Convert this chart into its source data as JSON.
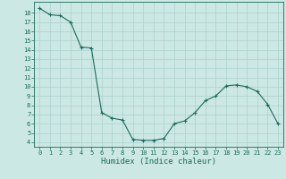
{
  "x": [
    0,
    1,
    2,
    3,
    4,
    5,
    6,
    7,
    8,
    9,
    10,
    11,
    12,
    13,
    14,
    15,
    16,
    17,
    18,
    19,
    20,
    21,
    22,
    23
  ],
  "y": [
    18.5,
    17.8,
    17.7,
    17.0,
    14.3,
    14.2,
    7.2,
    6.6,
    6.4,
    4.3,
    4.2,
    4.2,
    4.4,
    6.0,
    6.3,
    7.2,
    8.5,
    9.0,
    10.1,
    10.2,
    10.0,
    9.5,
    8.1,
    6.0
  ],
  "line_color": "#1a6b5a",
  "marker_color": "#1a6b5a",
  "bg_color": "#cce8e4",
  "grid_color": "#aad0cc",
  "ylabel_values": [
    4,
    5,
    6,
    7,
    8,
    9,
    10,
    11,
    12,
    13,
    14,
    15,
    16,
    17,
    18
  ],
  "xlabel": "Humidex (Indice chaleur)",
  "xlim": [
    -0.5,
    23.5
  ],
  "ylim": [
    3.5,
    19.2
  ],
  "xtick_labels": [
    "0",
    "1",
    "2",
    "3",
    "4",
    "5",
    "6",
    "7",
    "8",
    "9",
    "10",
    "11",
    "12",
    "13",
    "14",
    "15",
    "16",
    "17",
    "18",
    "19",
    "20",
    "21",
    "22",
    "23"
  ],
  "font_color": "#1a6b5a",
  "font_size_tick": 5.0,
  "font_size_xlabel": 6.5
}
